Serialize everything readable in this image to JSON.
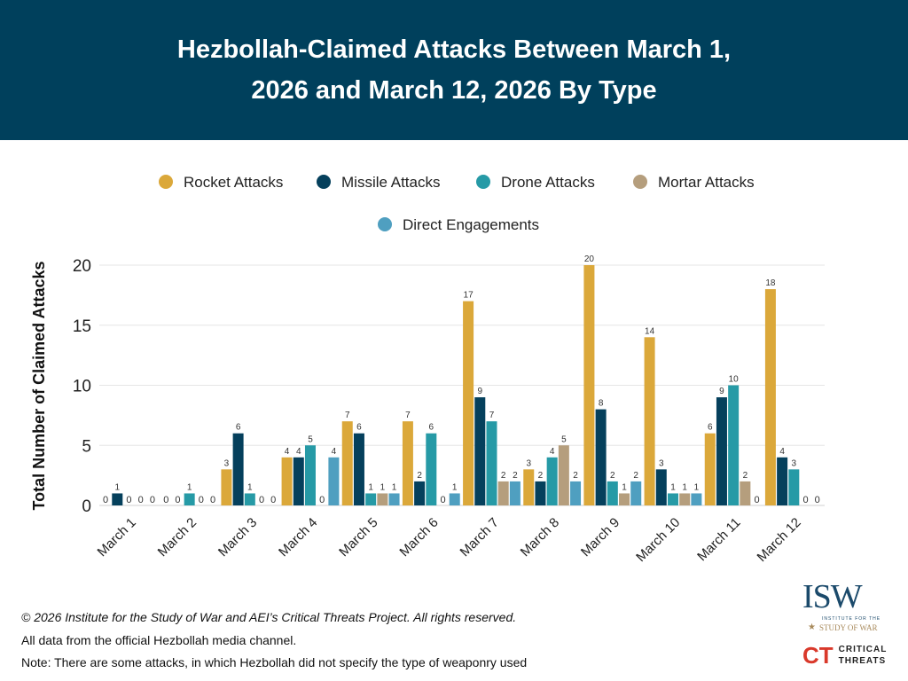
{
  "header": {
    "title": "Hezbollah-Claimed Attacks Between March 1, 2026 and March 12, 2026 By Type"
  },
  "chart_data": {
    "type": "bar",
    "title": "Hezbollah-Claimed Attacks Between March 1, 2026 and March 12, 2026 By Type",
    "xlabel": "",
    "ylabel": "Total Number of Claimed Attacks",
    "ylim": [
      0,
      20
    ],
    "yticks": [
      0,
      5,
      10,
      15,
      20
    ],
    "grid": true,
    "legend": "top",
    "categories": [
      "March 1",
      "March 2",
      "March 3",
      "March 4",
      "March 5",
      "March 6",
      "March 7",
      "March 8",
      "March 9",
      "March 10",
      "March 11",
      "March 12"
    ],
    "series": [
      {
        "name": "Rocket Attacks",
        "color": "#DBA83A",
        "values": [
          0,
          0,
          3,
          4,
          7,
          7,
          17,
          3,
          20,
          14,
          6,
          18
        ]
      },
      {
        "name": "Missile Attacks",
        "color": "#05405C",
        "values": [
          1,
          0,
          6,
          4,
          6,
          2,
          9,
          2,
          8,
          3,
          9,
          4
        ]
      },
      {
        "name": "Drone Attacks",
        "color": "#269AA6",
        "values": [
          0,
          1,
          1,
          5,
          1,
          6,
          7,
          4,
          2,
          1,
          10,
          3
        ]
      },
      {
        "name": "Mortar Attacks",
        "color": "#B59E7D",
        "values": [
          0,
          0,
          0,
          0,
          1,
          0,
          2,
          5,
          1,
          1,
          2,
          0
        ]
      },
      {
        "name": "Direct Engagements",
        "color": "#4F9FC0",
        "values": [
          0,
          0,
          0,
          4,
          1,
          1,
          2,
          2,
          2,
          1,
          0,
          0
        ]
      }
    ]
  },
  "footer": {
    "copyright": "© 2026 Institute for the Study of War and AEI’s Critical Threats Project. All rights reserved.",
    "source": "All data from the official Hezbollah media channel.",
    "note": "Note: There are some attacks, in which Hezbollah did not specify the type of weaponry used"
  },
  "logos": {
    "isw": "ISW",
    "isw_sub1": "INSTITUTE FOR THE",
    "isw_sub2": "STUDY OF WAR",
    "ct1": "CRITICAL",
    "ct2": "THREATS"
  }
}
